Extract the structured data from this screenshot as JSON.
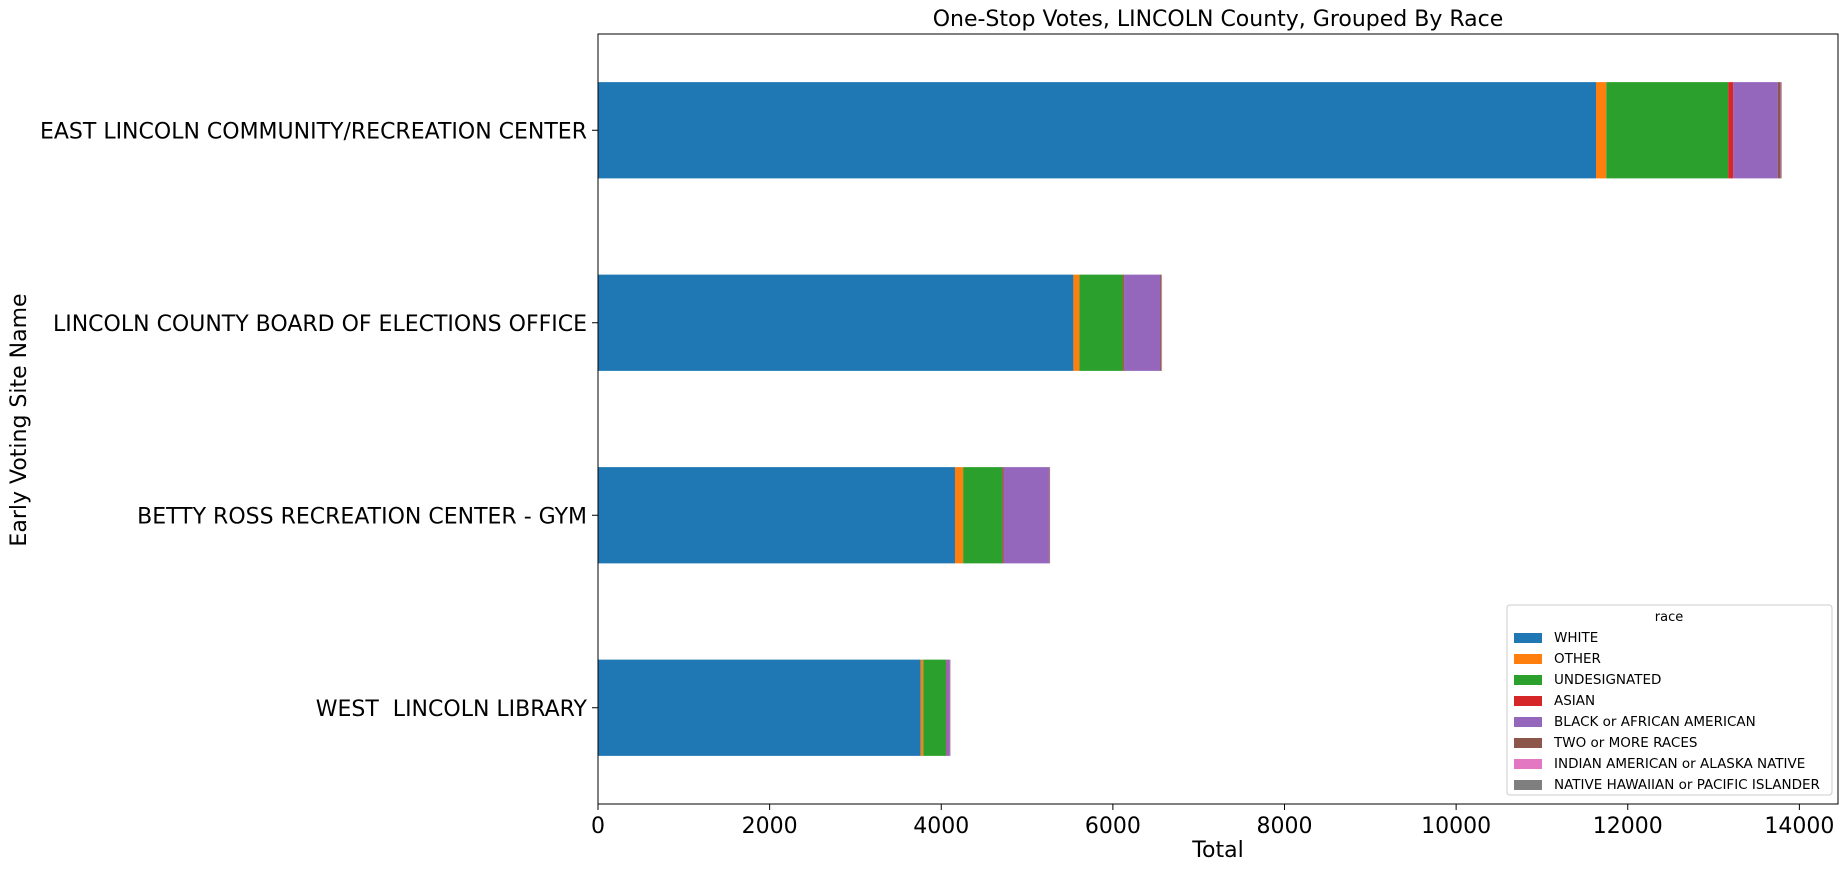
{
  "chart_data": {
    "type": "bar",
    "orientation": "horizontal",
    "stacked": true,
    "title": "One-Stop Votes, LINCOLN County, Grouped By Race",
    "xlabel": "Total",
    "ylabel": "Early Voting Site Name",
    "xlim": [
      0,
      14450
    ],
    "xticks": [
      0,
      2000,
      4000,
      6000,
      8000,
      10000,
      12000,
      14000
    ],
    "grid": false,
    "legend": {
      "title": "race",
      "placement": "lower-right"
    },
    "categories": [
      "EAST LINCOLN COMMUNITY/RECREATION CENTER",
      "LINCOLN COUNTY BOARD OF ELECTIONS OFFICE",
      "BETTY ROSS RECREATION CENTER - GYM",
      "WEST  LINCOLN LIBRARY"
    ],
    "series": [
      {
        "name": "WHITE",
        "color": "#1f77b4",
        "values": [
          11630,
          5540,
          4160,
          3760
        ]
      },
      {
        "name": "OTHER",
        "color": "#ff7f0e",
        "values": [
          120,
          70,
          95,
          30
        ]
      },
      {
        "name": "UNDESIGNATED",
        "color": "#2ca02c",
        "values": [
          1420,
          510,
          460,
          265
        ]
      },
      {
        "name": "ASIAN",
        "color": "#d62728",
        "values": [
          60,
          10,
          10,
          5
        ]
      },
      {
        "name": "BLACK or AFRICAN AMERICAN",
        "color": "#9467bd",
        "values": [
          520,
          420,
          530,
          40
        ]
      },
      {
        "name": "TWO or MORE RACES",
        "color": "#8c564b",
        "values": [
          30,
          15,
          8,
          5
        ]
      },
      {
        "name": "INDIAN AMERICAN or ALASKA NATIVE",
        "color": "#e377c2",
        "values": [
          10,
          5,
          3,
          2
        ]
      },
      {
        "name": "NATIVE HAWAIIAN or PACIFIC ISLANDER",
        "color": "#7f7f7f",
        "values": [
          5,
          3,
          2,
          1
        ]
      }
    ]
  }
}
